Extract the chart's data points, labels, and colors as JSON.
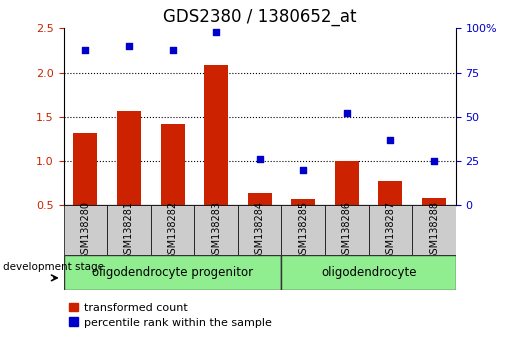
{
  "title": "GDS2380 / 1380652_at",
  "samples": [
    "GSM138280",
    "GSM138281",
    "GSM138282",
    "GSM138283",
    "GSM138284",
    "GSM138285",
    "GSM138286",
    "GSM138287",
    "GSM138288"
  ],
  "transformed_count": [
    1.32,
    1.57,
    1.42,
    2.08,
    0.64,
    0.57,
    1.0,
    0.77,
    0.58
  ],
  "percentile_rank": [
    88,
    90,
    88,
    98,
    26,
    20,
    52,
    37,
    25
  ],
  "ylim_left": [
    0.5,
    2.5
  ],
  "ylim_right": [
    0,
    100
  ],
  "yticks_left": [
    0.5,
    1.0,
    1.5,
    2.0,
    2.5
  ],
  "yticks_right": [
    0,
    25,
    50,
    75,
    100
  ],
  "bar_color": "#CC2200",
  "dot_color": "#0000CC",
  "bar_width": 0.55,
  "background_xticklabel": "#cccccc",
  "legend_labels": [
    "transformed count",
    "percentile rank within the sample"
  ],
  "ylabel_left_color": "#CC2200",
  "ylabel_right_color": "#0000CC",
  "dev_stage_label": "development stage",
  "title_fontsize": 12,
  "tick_fontsize": 8,
  "legend_fontsize": 8,
  "group1_label": "oligodendrocyte progenitor",
  "group1_count": 5,
  "group2_label": "oligodendrocyte",
  "group2_count": 4,
  "group_color": "#90EE90"
}
